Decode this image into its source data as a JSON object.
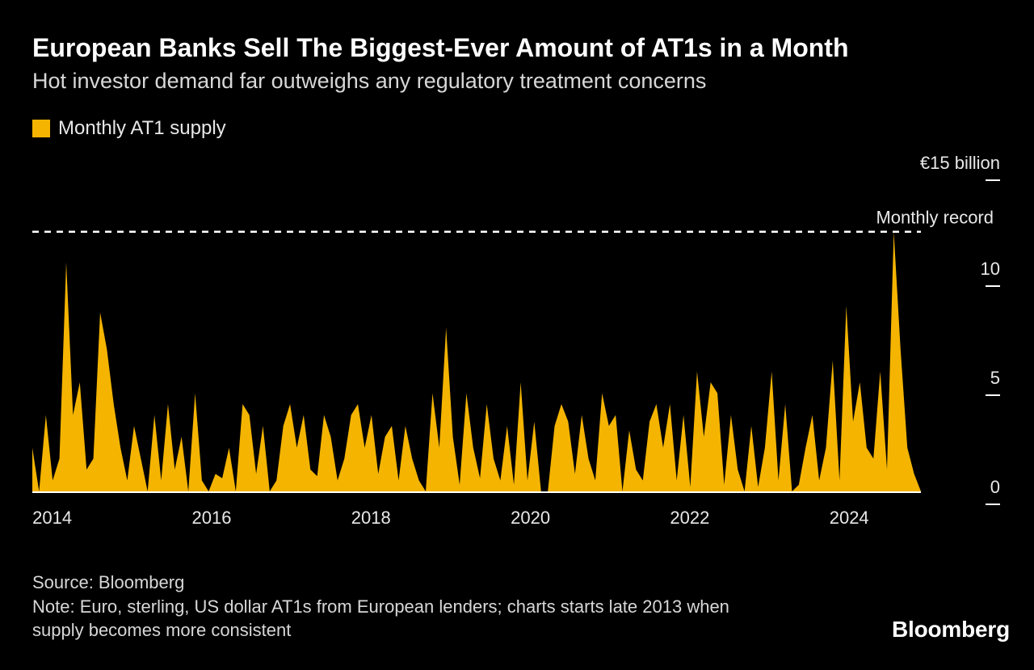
{
  "header": {
    "title": "European Banks Sell The Biggest-Ever Amount of AT1s in a Month",
    "subtitle": "Hot investor demand far outweighs any regulatory treatment concerns"
  },
  "legend": {
    "label": "Monthly AT1 supply",
    "swatch_color": "#f4b400"
  },
  "chart": {
    "type": "area",
    "fill_color": "#f4b400",
    "background_color": "#000000",
    "axis_color": "#ffffff",
    "text_color": "#e8e8e8",
    "record_line": {
      "label": "Monthly record",
      "value": 11.9,
      "color": "#ffffff",
      "dash": "8,7"
    },
    "y_axis": {
      "min": 0,
      "max": 15,
      "ticks": [
        0,
        5,
        10
      ],
      "top_label": "€15 billion"
    },
    "x_axis": {
      "start": 2013.75,
      "end": 2024.9,
      "tick_years": [
        2014,
        2016,
        2018,
        2020,
        2022,
        2024
      ]
    },
    "series": [
      2.0,
      0.0,
      3.5,
      0.5,
      1.5,
      10.5,
      3.5,
      5.0,
      1.0,
      1.5,
      8.2,
      6.5,
      4.0,
      2.0,
      0.5,
      3.0,
      1.5,
      0.0,
      3.5,
      0.5,
      4.0,
      1.0,
      2.5,
      0.0,
      4.5,
      0.5,
      0.0,
      0.8,
      0.6,
      2.0,
      0.0,
      4.0,
      3.5,
      0.8,
      3.0,
      0.0,
      0.5,
      3.0,
      4.0,
      2.0,
      3.5,
      1.0,
      0.7,
      3.5,
      2.5,
      0.5,
      1.5,
      3.5,
      4.0,
      2.0,
      3.5,
      0.8,
      2.5,
      3.0,
      0.5,
      3.0,
      1.5,
      0.5,
      0.0,
      4.5,
      2.0,
      7.5,
      2.5,
      0.3,
      4.5,
      2.0,
      0.6,
      4.0,
      1.5,
      0.5,
      3.0,
      0.3,
      5.0,
      0.5,
      3.2,
      0.0,
      0.0,
      3.0,
      4.0,
      3.2,
      0.8,
      3.5,
      1.5,
      0.5,
      4.5,
      3.0,
      3.5,
      0.0,
      2.8,
      1.0,
      0.5,
      3.2,
      4.0,
      2.0,
      4.0,
      0.5,
      3.5,
      0.2,
      5.5,
      2.5,
      5.0,
      4.5,
      0.3,
      3.5,
      1.0,
      0.0,
      3.0,
      0.2,
      2.0,
      5.5,
      0.5,
      4.0,
      0.0,
      0.3,
      2.0,
      3.5,
      0.5,
      2.0,
      6.0,
      0.5,
      8.5,
      3.2,
      5.0,
      2.0,
      1.5,
      5.5,
      1.0,
      11.9,
      6.5,
      2.0,
      0.8,
      0.0
    ]
  },
  "footer": {
    "source": "Source: Bloomberg",
    "note": "Note: Euro, sterling, US dollar AT1s from European lenders; charts starts late 2013 when supply becomes more consistent",
    "brand": "Bloomberg"
  }
}
